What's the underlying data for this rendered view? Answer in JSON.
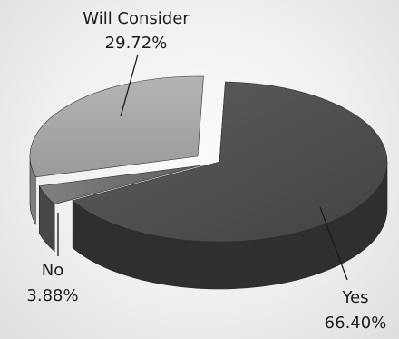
{
  "chart_data": {
    "type": "pie",
    "style": "3d-exploded",
    "slices": [
      {
        "label": "Yes",
        "value": 66.4,
        "value_text": "66.40%",
        "color": "#505050"
      },
      {
        "label": "No",
        "value": 3.88,
        "value_text": "3.88%",
        "color": "#6f6f6f"
      },
      {
        "label": "Will Consider",
        "value": 29.72,
        "value_text": "29.72%",
        "color": "#a9a9a9"
      }
    ],
    "legend": "none",
    "data_labels": "outside with leader lines"
  }
}
